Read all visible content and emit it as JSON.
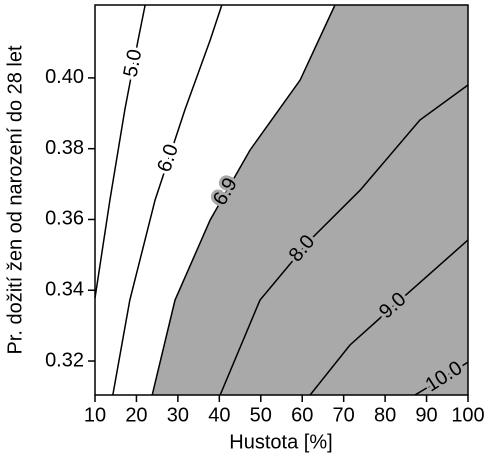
{
  "chart_data": {
    "type": "contour",
    "xlabel": "Hustota [%]",
    "ylabel": "Pr. dožití žen od narození do 28 let",
    "xlim": [
      10,
      100
    ],
    "ylim": [
      0.3104,
      0.4206
    ],
    "xticks": [
      10,
      20,
      30,
      40,
      50,
      60,
      70,
      80,
      90,
      100
    ],
    "yticks": [
      0.32,
      0.34,
      0.36,
      0.38,
      {
        "value": 0.4,
        "label": "0.40"
      }
    ],
    "line_color": "#000000",
    "contours": [
      {
        "level": {
          "value": 5,
          "label": "5.0"
        },
        "x": [
          10,
          13.6,
          17.2,
          20.4,
          22.1
        ],
        "y": [
          0.3378,
          0.3655,
          0.391,
          0.4107,
          0.4206
        ]
      },
      {
        "level": {
          "value": 6,
          "label": "6.0"
        },
        "x": [
          14.3,
          18.4,
          24.5,
          31.7,
          37.8,
          40.6
        ],
        "y": [
          0.3104,
          0.3372,
          0.3655,
          0.391,
          0.4107,
          0.4206
        ]
      },
      {
        "level": {
          "value": 6.9,
          "label": "6.9"
        },
        "x": [
          23.8,
          29.3,
          37.8,
          47.4,
          59.5,
          67.9
        ],
        "y": [
          0.3104,
          0.3372,
          0.3599,
          0.3796,
          0.3994,
          0.4206
        ],
        "fill_color": "#a9a9a9"
      },
      {
        "level": {
          "value": 8,
          "label": "8.0"
        },
        "x": [
          40.2,
          49.8,
          61.9,
          74,
          88.4,
          100
        ],
        "y": [
          0.3104,
          0.3372,
          0.3542,
          0.3683,
          0.3881,
          0.398
        ]
      },
      {
        "level": {
          "value": 9,
          "label": "9.0"
        },
        "x": [
          61.9,
          71.5,
          83.6,
          100
        ],
        "y": [
          0.3104,
          0.3245,
          0.3372,
          0.3542
        ]
      },
      {
        "level": {
          "value": 10,
          "label": "10.0"
        },
        "x": [
          87.2,
          93.2,
          100
        ],
        "y": [
          0.3104,
          0.3146,
          0.3197
        ]
      }
    ]
  }
}
